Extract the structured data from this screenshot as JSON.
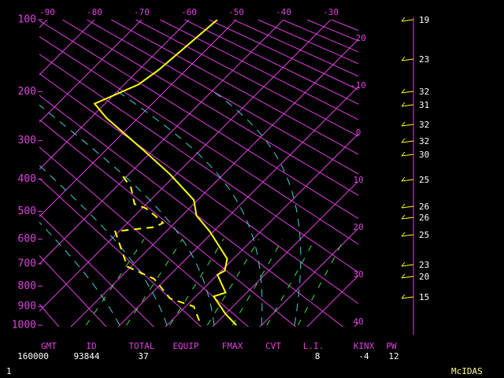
{
  "chart_data": {
    "type": "skewt",
    "pressure_ticks": [
      100,
      200,
      300,
      400,
      500,
      600,
      700,
      800,
      900,
      1000
    ],
    "top_temperature_ticks": [
      -90,
      -80,
      -70,
      -60,
      -50,
      -40,
      -30
    ],
    "side_temperature_ticks": [
      -20,
      -10,
      0,
      10,
      20,
      30,
      40
    ],
    "series": [
      {
        "color": "#ffff00",
        "style": "solid",
        "pressure": [
          100,
          165,
          188,
          222,
          250,
          320,
          386,
          463,
          514,
          571,
          679,
          730,
          748,
          831,
          850,
          939,
          1000
        ],
        "values": [
          -54,
          -55.8,
          -57,
          -62.2,
          -56.7,
          -42.5,
          -31.3,
          -20.8,
          -17,
          -10.8,
          -1.3,
          0.7,
          0,
          5.5,
          3.8,
          10,
          14.7
        ]
      },
      {
        "color": "#ffff00",
        "style": "dashed",
        "pressure": [
          392,
          425,
          476,
          490,
          514,
          540,
          555,
          571,
          712,
          767,
          860,
          900,
          1000
        ],
        "values": [
          -40.8,
          -36.7,
          -32.5,
          -29.2,
          -25.8,
          -22.5,
          -23.3,
          -30.8,
          -20.8,
          -12.5,
          -5,
          1.7,
          7.2
        ]
      }
    ],
    "wind_speeds": [
      19,
      23,
      32,
      31,
      32,
      32,
      30,
      25,
      26,
      26,
      25,
      23,
      20,
      15
    ]
  },
  "footer": [
    {
      "label": "GMT",
      "value": 160000
    },
    {
      "label": "ID",
      "value": 93844
    },
    {
      "label": "TOTAL",
      "value": 37
    },
    {
      "label": "EQUIP"
    },
    {
      "label": "FMAX"
    },
    {
      "label": "CVT"
    },
    {
      "label": "L.I.",
      "value": 8
    },
    {
      "label": "KINX",
      "value": -4
    },
    {
      "label": "PW",
      "value": 12
    }
  ],
  "frame_number": 1,
  "brand": "McIDAS"
}
